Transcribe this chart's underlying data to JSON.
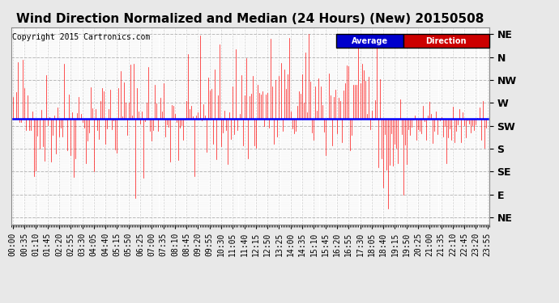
{
  "title": "Wind Direction Normalized and Median (24 Hours) (New) 20150508",
  "copyright": "Copyright 2015 Cartronics.com",
  "legend_average_label": "Average",
  "legend_direction_label": "Direction",
  "legend_average_bg": "#0000cc",
  "legend_direction_bg": "#cc0000",
  "legend_text_color": "#ffffff",
  "y_tick_labels": [
    "NE",
    "N",
    "NW",
    "W",
    "SW",
    "S",
    "SE",
    "E",
    "NE"
  ],
  "y_tick_values": [
    8,
    7,
    6,
    5,
    4,
    3,
    2,
    1,
    0
  ],
  "ylim": [
    -0.3,
    8.3
  ],
  "blue_line_y": 4.3,
  "bg_color": "#e8e8e8",
  "plot_bg_color": "#ffffff",
  "grid_color": "#aaaaaa",
  "grid_style": "--",
  "red_line_color": "#ff0000",
  "blue_line_color": "#0000ff",
  "title_fontsize": 11,
  "copyright_fontsize": 7,
  "tick_fontsize": 7,
  "x_tick_step": 7
}
